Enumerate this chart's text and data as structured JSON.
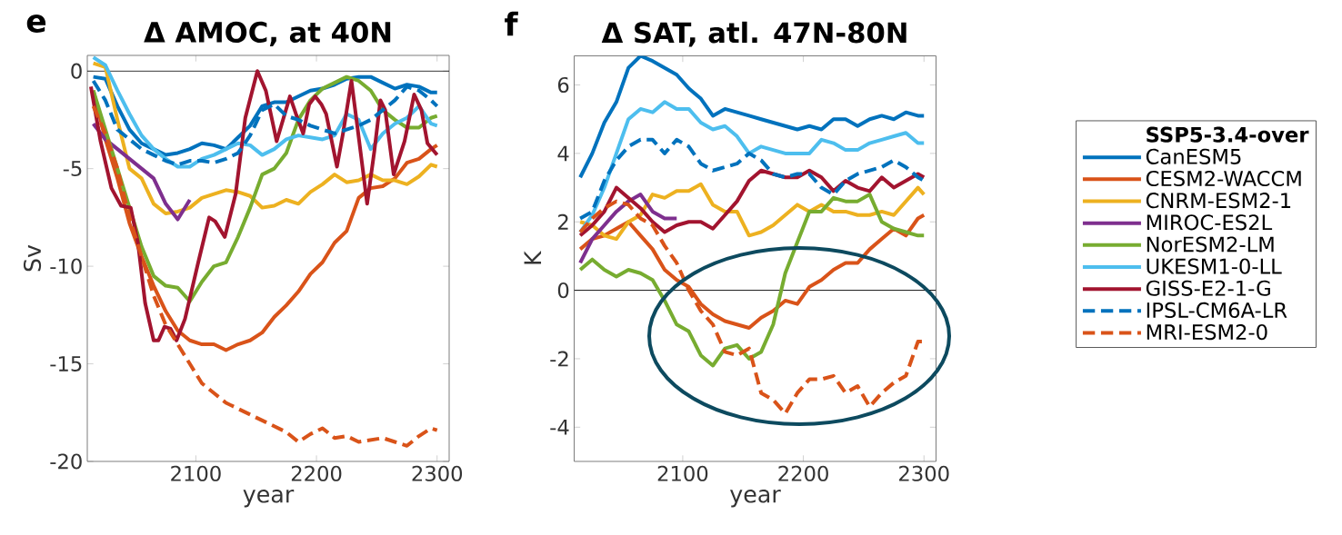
{
  "chart_data": [
    {
      "type": "line",
      "title": "Δ AMOC, at 40N",
      "xlabel": "year",
      "ylabel": "Sv",
      "annotations": [
        "e"
      ],
      "legend": false,
      "x": [
        2015,
        2025,
        2035,
        2045,
        2055,
        2065,
        2075,
        2085,
        2095,
        2105,
        2115,
        2125,
        2135,
        2145,
        2155,
        2165,
        2175,
        2185,
        2195,
        2205,
        2215,
        2225,
        2235,
        2245,
        2255,
        2265,
        2275,
        2285,
        2295,
        2300
      ],
      "xlim": [
        2010,
        2310
      ],
      "ylim": [
        -20,
        0.8
      ],
      "xticks": [
        2100,
        2200,
        2300
      ],
      "yticks": [
        -20,
        -15,
        -10,
        -5,
        0
      ],
      "ref_lines": [
        {
          "axis": "y",
          "value": 0,
          "color": "#000000"
        }
      ],
      "series": [
        {
          "color": "#0072bd",
          "line_style": "solid",
          "values": [
            -0.3,
            -0.4,
            -1.8,
            -3.0,
            -3.7,
            -4.0,
            -4.3,
            -4.2,
            -4.0,
            -3.7,
            -3.8,
            -4.0,
            -3.4,
            -2.8,
            -1.8,
            -1.6,
            -1.6,
            -1.3,
            -1.0,
            -0.9,
            -0.7,
            -0.4,
            -0.3,
            -0.3,
            -0.6,
            -0.9,
            -0.7,
            -0.8,
            -1.1,
            -1.1
          ]
        },
        {
          "color": "#d95319",
          "line_style": "solid",
          "values": [
            -1.0,
            -3.5,
            -5.5,
            -7.8,
            -9.5,
            -11.0,
            -12.3,
            -13.3,
            -13.8,
            -14.0,
            -14.0,
            -14.3,
            -14.0,
            -13.8,
            -13.4,
            -12.6,
            -12.0,
            -11.3,
            -10.4,
            -9.8,
            -8.8,
            -8.2,
            -6.5,
            -6.0,
            -5.9,
            -5.5,
            -4.7,
            -4.5,
            -4.0,
            -3.8
          ]
        },
        {
          "color": "#edb120",
          "line_style": "solid",
          "values": [
            0.4,
            0.2,
            -2.5,
            -5.0,
            -5.5,
            -6.8,
            -7.3,
            -7.2,
            -7.0,
            -6.5,
            -6.3,
            -6.1,
            -6.2,
            -6.4,
            -7.0,
            -6.9,
            -6.6,
            -6.8,
            -6.2,
            -5.8,
            -5.3,
            -5.7,
            -5.6,
            -5.3,
            -5.6,
            -5.6,
            -5.8,
            -5.4,
            -4.8,
            -4.9
          ]
        },
        {
          "color": "#7e2f8e",
          "line_style": "solid",
          "values": [
            -2.7,
            -3.5,
            -4.0,
            -4.5,
            -5.0,
            -5.5,
            -6.8,
            -7.6,
            -6.6,
            null,
            null,
            null,
            null,
            null,
            null,
            null,
            null,
            null,
            null,
            null,
            null,
            null,
            null,
            null,
            null,
            null,
            null,
            null,
            null,
            null
          ]
        },
        {
          "color": "#77ac30",
          "line_style": "solid",
          "values": [
            -1.0,
            -3.0,
            -5.0,
            -7.0,
            -9.0,
            -10.5,
            -11.0,
            -11.1,
            -11.8,
            -10.8,
            -10.0,
            -9.8,
            -8.5,
            -7.0,
            -5.3,
            -5.0,
            -4.2,
            -2.5,
            -1.5,
            -0.9,
            -0.6,
            -0.3,
            -0.5,
            -1.0,
            -2.0,
            -2.5,
            -2.9,
            -2.9,
            -2.4,
            -2.3
          ]
        },
        {
          "color": "#4dbeee",
          "line_style": "solid",
          "values": [
            0.7,
            0.3,
            -1.0,
            -2.2,
            -3.3,
            -4.0,
            -4.5,
            -4.9,
            -4.9,
            -4.5,
            -4.3,
            -4.0,
            -3.7,
            -3.8,
            -4.3,
            -4.0,
            -3.5,
            -3.3,
            -3.4,
            -3.5,
            -3.3,
            -2.2,
            -2.5,
            -4.0,
            -3.2,
            -2.7,
            -2.4,
            -1.8,
            -2.7,
            -2.8
          ]
        },
        {
          "color": "#a2142f",
          "line_style": "solid",
          "x": [
            2013,
            2021,
            2030,
            2038,
            2046,
            2052,
            2058,
            2065,
            2069,
            2074,
            2079,
            2084,
            2091,
            2102,
            2111,
            2116,
            2124,
            2133,
            2141,
            2151,
            2158,
            2167,
            2178,
            2183,
            2189,
            2194,
            2199,
            2204,
            2208,
            2217,
            2222,
            2229,
            2234,
            2242,
            2248,
            2253,
            2257,
            2264,
            2273,
            2281,
            2287,
            2292,
            2300
          ],
          "values": [
            -0.8,
            -3.6,
            -6.0,
            -6.9,
            -7.0,
            -8.8,
            -11.9,
            -13.8,
            -13.8,
            -13.1,
            -13.2,
            -13.8,
            -12.7,
            -9.8,
            -7.5,
            -7.7,
            -8.5,
            -6.3,
            -2.4,
            0.0,
            -1.0,
            -3.6,
            -1.3,
            -2.2,
            -3.2,
            -1.7,
            -1.3,
            -1.7,
            -2.2,
            -4.9,
            -3.2,
            -0.5,
            -2.9,
            -6.8,
            -4.1,
            -1.5,
            -2.0,
            -5.3,
            -3.6,
            -1.2,
            -2.0,
            -3.7,
            -4.3
          ]
        },
        {
          "color": "#0072bd",
          "line_style": "dashed",
          "values": [
            -0.5,
            -1.5,
            -3.0,
            -3.5,
            -4.0,
            -4.3,
            -4.6,
            -4.8,
            -4.6,
            -4.6,
            -4.7,
            -4.5,
            -4.2,
            -3.3,
            -2.0,
            -1.7,
            -2.3,
            -2.5,
            -2.8,
            -3.0,
            -3.2,
            -3.0,
            -2.8,
            -2.5,
            -2.0,
            -1.5,
            -0.8,
            -1.0,
            -1.5,
            -1.8
          ]
        },
        {
          "color": "#d95319",
          "line_style": "dashed",
          "values": [
            -1.8,
            -3.2,
            -5.0,
            -7.5,
            -9.5,
            -11.5,
            -13.0,
            -14.0,
            -15.0,
            -16.0,
            -16.5,
            -17.0,
            -17.3,
            -17.6,
            -17.9,
            -18.2,
            -18.5,
            -19.0,
            -18.6,
            -18.3,
            -18.8,
            -18.7,
            -19.0,
            -18.9,
            -18.8,
            -19.0,
            -19.2,
            -18.7,
            -18.3,
            -18.4
          ]
        }
      ]
    },
    {
      "type": "line",
      "title": "Δ SAT, atl. 47N-80N",
      "xlabel": "year",
      "ylabel": "K",
      "annotations": [
        "f"
      ],
      "legend": "right",
      "legend_title": "SSP5-3.4-over",
      "x": [
        2015,
        2025,
        2035,
        2045,
        2055,
        2065,
        2075,
        2085,
        2095,
        2105,
        2115,
        2125,
        2135,
        2145,
        2155,
        2165,
        2175,
        2185,
        2195,
        2205,
        2215,
        2225,
        2235,
        2245,
        2255,
        2265,
        2275,
        2285,
        2295,
        2300
      ],
      "xlim": [
        2010,
        2310
      ],
      "ylim": [
        -5,
        6.85
      ],
      "xticks": [
        2100,
        2200,
        2300
      ],
      "yticks": [
        -4,
        -2,
        0,
        2,
        4,
        6
      ],
      "ref_lines": [
        {
          "axis": "y",
          "value": 0,
          "color": "#000000"
        }
      ],
      "series": [
        {
          "name": "CanESM5",
          "color": "#0072bd",
          "line_style": "solid",
          "values": [
            3.3,
            4.0,
            4.9,
            5.5,
            6.5,
            6.85,
            6.7,
            6.5,
            6.3,
            5.9,
            5.6,
            5.1,
            5.3,
            5.2,
            5.1,
            5.0,
            4.9,
            4.8,
            4.7,
            4.8,
            4.7,
            5.0,
            5.0,
            4.8,
            5.0,
            5.1,
            5.0,
            5.2,
            5.1,
            5.1
          ]
        },
        {
          "name": "CESM2-WACCM",
          "color": "#d95319",
          "line_style": "solid",
          "values": [
            1.2,
            1.5,
            1.6,
            1.8,
            2.0,
            1.6,
            1.2,
            0.6,
            0.3,
            0.1,
            -0.4,
            -0.7,
            -0.9,
            -1.0,
            -1.1,
            -0.8,
            -0.6,
            -0.3,
            -0.4,
            0.1,
            0.3,
            0.6,
            0.8,
            0.8,
            1.2,
            1.5,
            1.8,
            1.6,
            2.1,
            2.2
          ]
        },
        {
          "name": "CNRM-ESM2-1",
          "color": "#edb120",
          "line_style": "solid",
          "values": [
            2.0,
            1.9,
            1.6,
            1.5,
            2.0,
            2.2,
            2.8,
            2.7,
            2.9,
            2.9,
            3.1,
            2.5,
            2.3,
            2.3,
            1.6,
            1.7,
            1.9,
            2.2,
            2.5,
            2.3,
            2.5,
            2.3,
            2.3,
            2.2,
            2.2,
            2.3,
            2.2,
            2.6,
            3.0,
            2.8
          ]
        },
        {
          "name": "MIROC-ES2L",
          "color": "#7e2f8e",
          "line_style": "solid",
          "values": [
            0.8,
            1.5,
            1.9,
            2.3,
            2.6,
            2.8,
            2.3,
            2.1,
            2.1,
            null,
            null,
            null,
            null,
            null,
            null,
            null,
            null,
            null,
            null,
            null,
            null,
            null,
            null,
            null,
            null,
            null,
            null,
            null,
            null,
            null
          ]
        },
        {
          "name": "NorESM2-LM",
          "color": "#77ac30",
          "line_style": "solid",
          "values": [
            0.6,
            0.9,
            0.6,
            0.4,
            0.6,
            0.5,
            0.3,
            -0.3,
            -1.0,
            -1.2,
            -1.9,
            -2.2,
            -1.7,
            -1.6,
            -2.0,
            -1.8,
            -1.0,
            0.5,
            1.4,
            2.3,
            2.3,
            2.7,
            2.6,
            2.6,
            2.8,
            2.0,
            1.8,
            1.7,
            1.6,
            1.6
          ]
        },
        {
          "name": "UKESM1-0-LL",
          "color": "#4dbeee",
          "line_style": "solid",
          "values": [
            1.7,
            2.2,
            3.0,
            4.0,
            5.0,
            5.3,
            5.2,
            5.5,
            5.3,
            5.3,
            4.9,
            4.7,
            4.8,
            4.5,
            4.0,
            4.2,
            4.1,
            4.0,
            4.0,
            4.0,
            4.4,
            4.3,
            4.1,
            4.1,
            4.3,
            4.4,
            4.5,
            4.6,
            4.3,
            4.3
          ]
        },
        {
          "name": "GISS-E2-1-G",
          "color": "#a2142f",
          "line_style": "solid",
          "values": [
            1.6,
            1.9,
            2.3,
            3.0,
            2.7,
            2.4,
            2.0,
            1.7,
            1.9,
            2.0,
            2.0,
            1.8,
            2.2,
            2.6,
            3.2,
            3.5,
            3.4,
            3.3,
            3.3,
            3.5,
            3.3,
            2.9,
            3.2,
            3.0,
            2.9,
            3.3,
            3.0,
            3.2,
            3.4,
            3.3
          ]
        },
        {
          "name": "IPSL-CM6A-LR",
          "color": "#0072bd",
          "line_style": "dashed",
          "values": [
            2.1,
            2.3,
            3.2,
            3.8,
            4.2,
            4.4,
            4.4,
            4.0,
            4.4,
            4.2,
            3.7,
            3.5,
            3.6,
            3.7,
            4.0,
            3.8,
            3.4,
            3.3,
            3.4,
            3.4,
            3.0,
            2.8,
            3.2,
            3.4,
            3.5,
            3.6,
            3.8,
            3.6,
            3.3,
            3.2
          ]
        },
        {
          "name": "MRI-ESM2-0",
          "color": "#d95319",
          "line_style": "dashed",
          "values": [
            1.7,
            2.1,
            2.4,
            2.6,
            2.5,
            2.1,
            1.9,
            1.3,
            0.8,
            0.0,
            -0.6,
            -1.0,
            -1.8,
            -1.9,
            -1.7,
            -3.0,
            -3.2,
            -3.6,
            -3.0,
            -2.6,
            -2.6,
            -2.5,
            -3.0,
            -2.8,
            -3.4,
            -3.0,
            -2.7,
            -2.5,
            -1.5,
            -1.5
          ]
        }
      ]
    }
  ]
}
